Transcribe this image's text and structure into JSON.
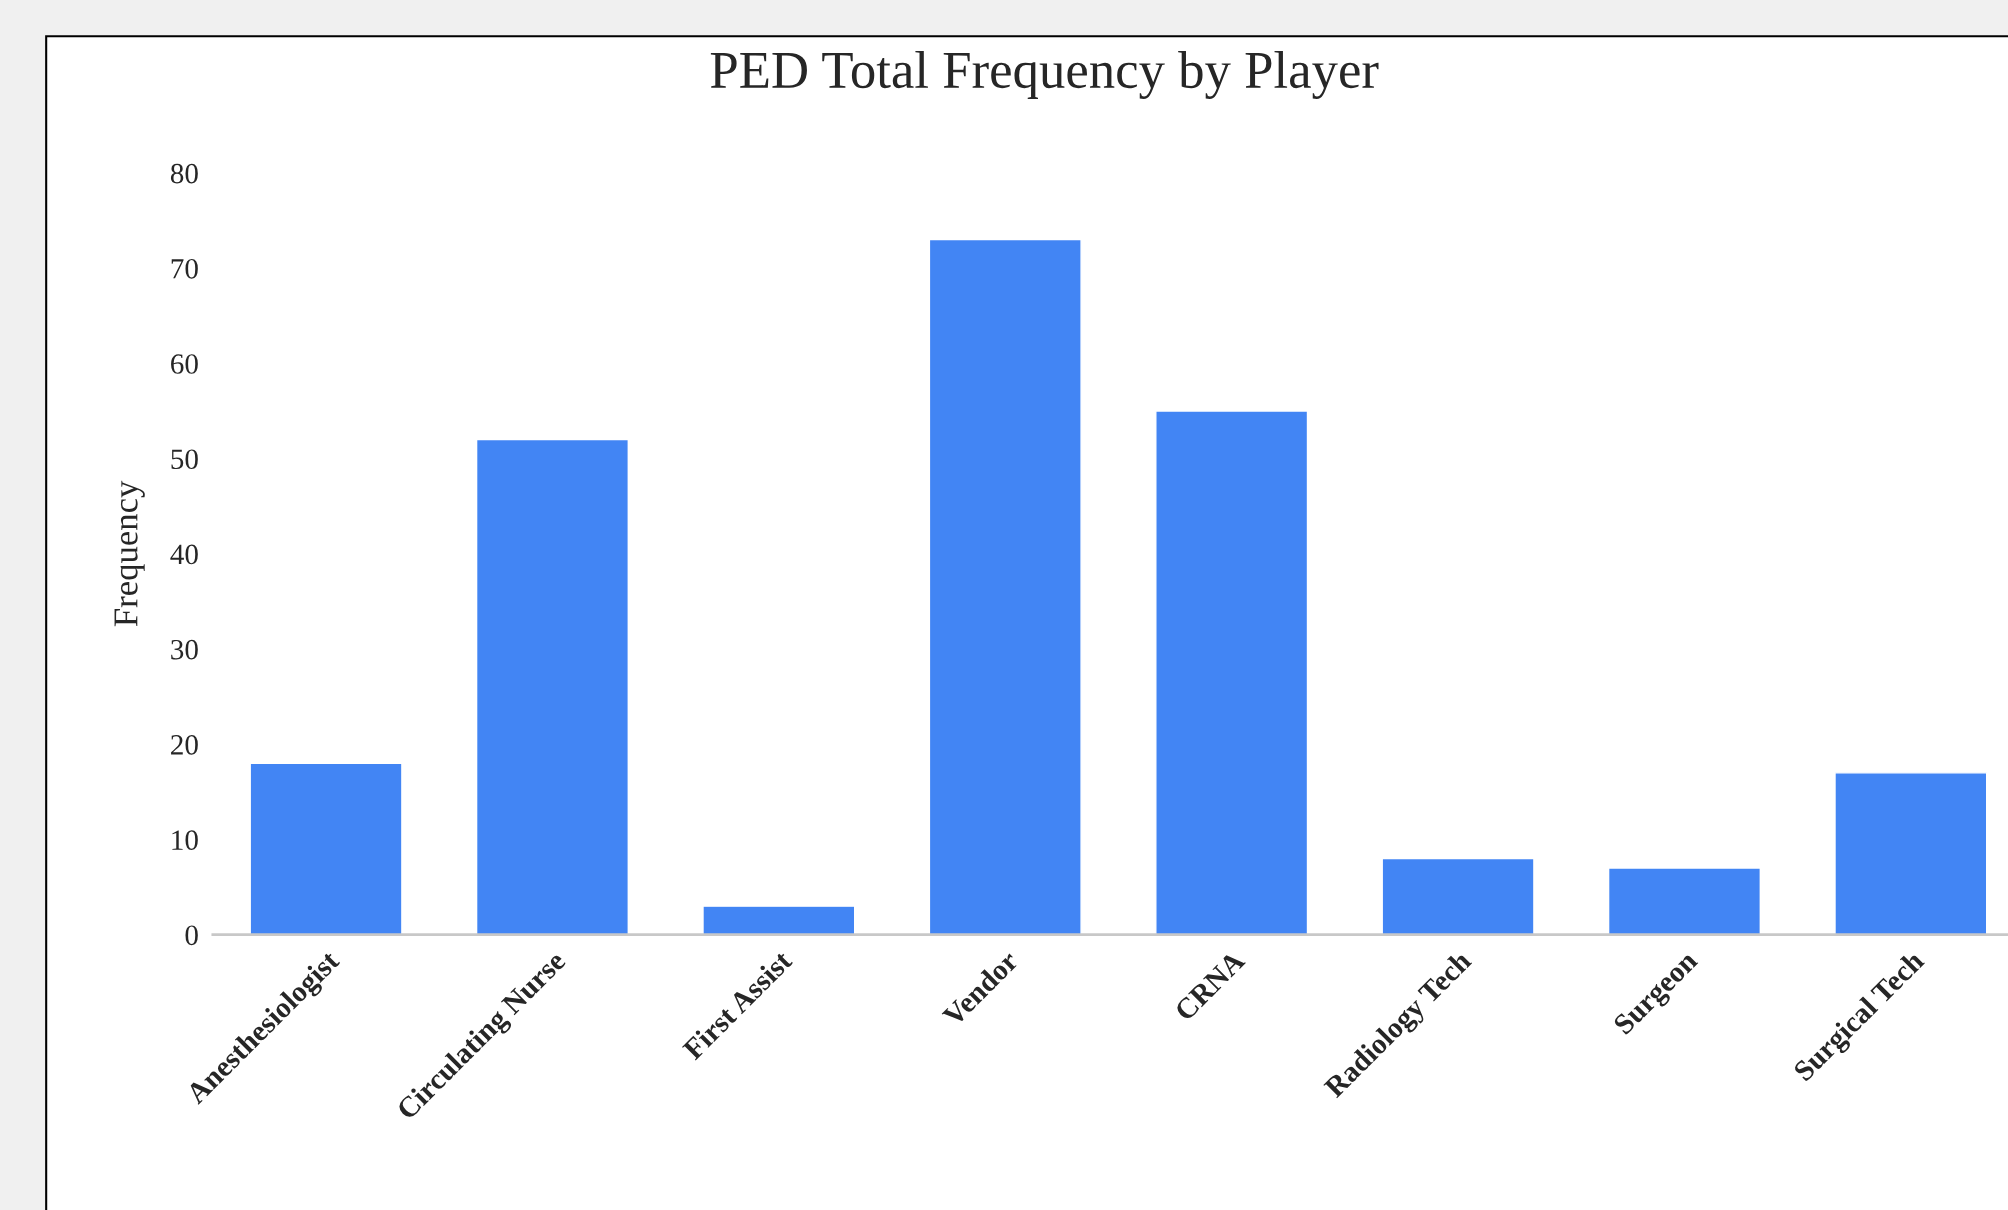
{
  "chart_data": {
    "type": "bar",
    "title": "PED Total Frequency by Player",
    "ylabel": "Frequency",
    "categories": [
      "Anesthesiologist",
      "Circulating Nurse",
      "First Assist",
      "Vendor",
      "CRNA",
      "Radiology Tech",
      "Surgeon",
      "Surgical Tech"
    ],
    "values": [
      18,
      52,
      3,
      73,
      55,
      8,
      7,
      17
    ],
    "color": "#4285f4",
    "ylim": [
      0,
      80
    ],
    "yticks": [
      0,
      10,
      20,
      30,
      40,
      50,
      60,
      70,
      80
    ],
    "grid": false
  }
}
